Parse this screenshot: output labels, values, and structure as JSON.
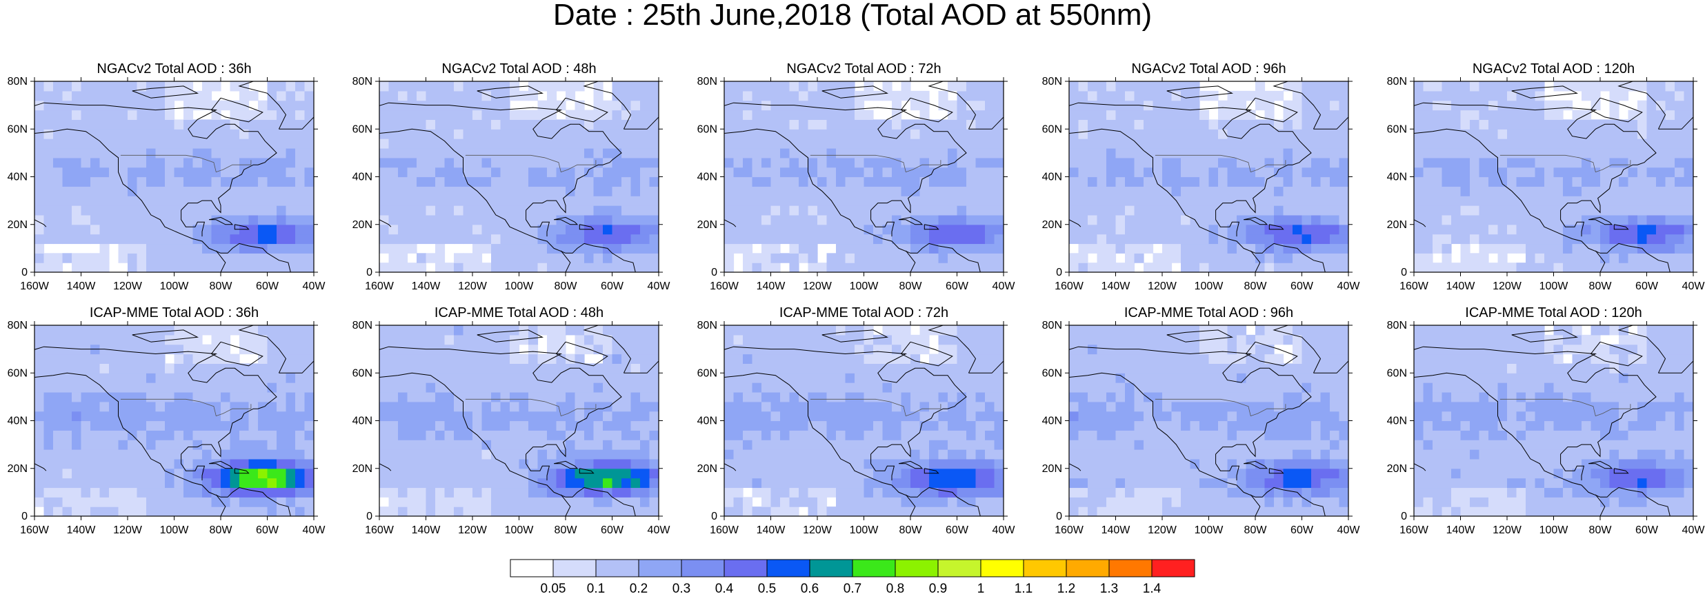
{
  "title": "Date : 25th June,2018 (Total AOD at 550nm)",
  "chart_data": {
    "type": "heatmap",
    "title": "Date : 25th June,2018 (Total AOD at 550nm)",
    "variable": "Total AOD at 550nm",
    "x_ticks": [
      "160W",
      "140W",
      "120W",
      "100W",
      "80W",
      "60W",
      "40W"
    ],
    "x_values": [
      -160,
      -140,
      -120,
      -100,
      -80,
      -60,
      -40
    ],
    "y_ticks": [
      "0",
      "20N",
      "40N",
      "60N",
      "80N"
    ],
    "y_values": [
      0,
      20,
      40,
      60,
      80
    ],
    "xlim": [
      -160,
      -40
    ],
    "ylim": [
      0,
      80
    ],
    "panels": [
      {
        "title": "NGACv2 Total AOD : 36h",
        "model": "NGACv2",
        "lead": "36h",
        "peak_aod": 0.5
      },
      {
        "title": "NGACv2 Total AOD : 48h",
        "model": "NGACv2",
        "lead": "48h",
        "peak_aod": 0.5
      },
      {
        "title": "NGACv2 Total AOD : 72h",
        "model": "NGACv2",
        "lead": "72h",
        "peak_aod": 0.45
      },
      {
        "title": "NGACv2 Total AOD : 96h",
        "model": "NGACv2",
        "lead": "96h",
        "peak_aod": 0.5
      },
      {
        "title": "NGACv2 Total AOD : 120h",
        "model": "NGACv2",
        "lead": "120h",
        "peak_aod": 0.5
      },
      {
        "title": "ICAP-MME Total AOD : 36h",
        "model": "ICAP-MME",
        "lead": "36h",
        "peak_aod": 0.8
      },
      {
        "title": "ICAP-MME Total AOD : 48h",
        "model": "ICAP-MME",
        "lead": "48h",
        "peak_aod": 0.7
      },
      {
        "title": "ICAP-MME Total AOD : 72h",
        "model": "ICAP-MME",
        "lead": "72h",
        "peak_aod": 0.55
      },
      {
        "title": "ICAP-MME Total AOD : 96h",
        "model": "ICAP-MME",
        "lead": "96h",
        "peak_aod": 0.5
      },
      {
        "title": "ICAP-MME Total AOD : 120h",
        "model": "ICAP-MME",
        "lead": "120h",
        "peak_aod": 0.45
      }
    ],
    "colorbar": {
      "levels": [
        "0.05",
        "0.1",
        "0.2",
        "0.3",
        "0.4",
        "0.5",
        "0.6",
        "0.7",
        "0.8",
        "0.9",
        "1",
        "1.1",
        "1.2",
        "1.3",
        "1.4"
      ],
      "colors": [
        "#ffffff",
        "#d5dcfb",
        "#b3c1f7",
        "#8fa6f5",
        "#7b8ff2",
        "#6a6ef0",
        "#0a58f5",
        "#009696",
        "#3be81a",
        "#8cf200",
        "#c6f52c",
        "#ffff00",
        "#ffc800",
        "#ffaa00",
        "#ff7800",
        "#ff2020"
      ]
    }
  }
}
